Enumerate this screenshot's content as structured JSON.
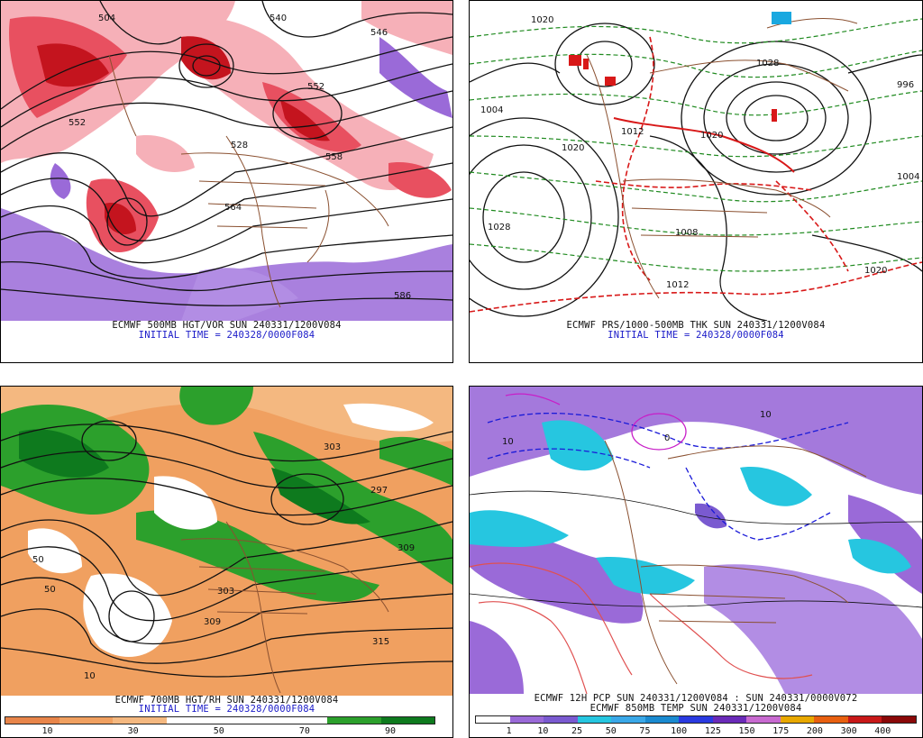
{
  "panels": [
    {
      "id": "hgt-vor",
      "caption_line1": "ECMWF 500MB HGT/VOR SUN 240331/1200V084",
      "caption_line2": "INITIAL TIME = 240328/0000F084",
      "contour_labels": [
        "504",
        "540",
        "546",
        "552",
        "552",
        "528",
        "558",
        "564",
        "586"
      ],
      "colors": {
        "vorticity_strong": "#c4141e",
        "vorticity_mid": "#e85060",
        "vorticity_weak": "#f6b0b8",
        "negative": "#9a6ad8",
        "contour": "#111111",
        "borders": "#8a5030"
      }
    },
    {
      "id": "prs-thk",
      "caption_line1": "ECMWF PRS/1000-500MB THK SUN 240331/1200V084",
      "caption_line2": "INITIAL TIME = 240328/0000F084",
      "contour_labels": [
        "1020",
        "1004",
        "1020",
        "1012",
        "1020",
        "1028",
        "1008",
        "1012",
        "1020",
        "996",
        "1004",
        "1028"
      ],
      "colors": {
        "isobar": "#111111",
        "thickness_green": "#1f8a1f",
        "thickness_red": "#d81818",
        "borders": "#8a5030",
        "snow": "#19a8e0"
      }
    },
    {
      "id": "hgt-rh",
      "caption_line1": "ECMWF 700MB HGT/RH SUN 240331/1200V084",
      "caption_line2": "INITIAL TIME = 240328/0000F084",
      "contour_labels": [
        "303",
        "297",
        "309",
        "303",
        "309",
        "315",
        "50",
        "50",
        "10"
      ],
      "colorbar": {
        "colors": [
          "#e8854a",
          "#f0a060",
          "#f4b880",
          "#ffffff",
          "#ffffff",
          "#ffffff",
          "#2ca02c",
          "#0e7a1e"
        ],
        "ticks": [
          "10",
          "30",
          "50",
          "70",
          "90"
        ]
      },
      "colors": {
        "dry": "#f0a060",
        "moist": "#2ca02c",
        "contour": "#111111",
        "borders": "#8a5030"
      }
    },
    {
      "id": "pcp-temp",
      "caption_line1": "ECMWF 12H PCP SUN 240331/1200V084 : SUN 240331/0000V072",
      "caption_line2": "ECMWF 850MB TEMP SUN 240331/1200V084",
      "contour_labels": [
        "10",
        "10",
        "0"
      ],
      "colorbar": {
        "colors": [
          "#ffffff",
          "#9a6ad8",
          "#7a5ad0",
          "#26c6e0",
          "#3aa8e8",
          "#1a8ad0",
          "#2a3ae0",
          "#6a2ab8",
          "#c86ad0",
          "#e8a800",
          "#e86010",
          "#c81818",
          "#8a0808"
        ],
        "ticks": [
          "1",
          "10",
          "25",
          "50",
          "75",
          "100",
          "125",
          "150",
          "175",
          "200",
          "300",
          "400"
        ]
      },
      "colors": {
        "precip_light": "#9a6ad8",
        "precip_mid": "#26c6e0",
        "temp_warm": "#e05050",
        "temp_cold": "#1a1ad8",
        "temp_freezing": "#c81ec8",
        "borders": "#8a5030"
      }
    }
  ]
}
